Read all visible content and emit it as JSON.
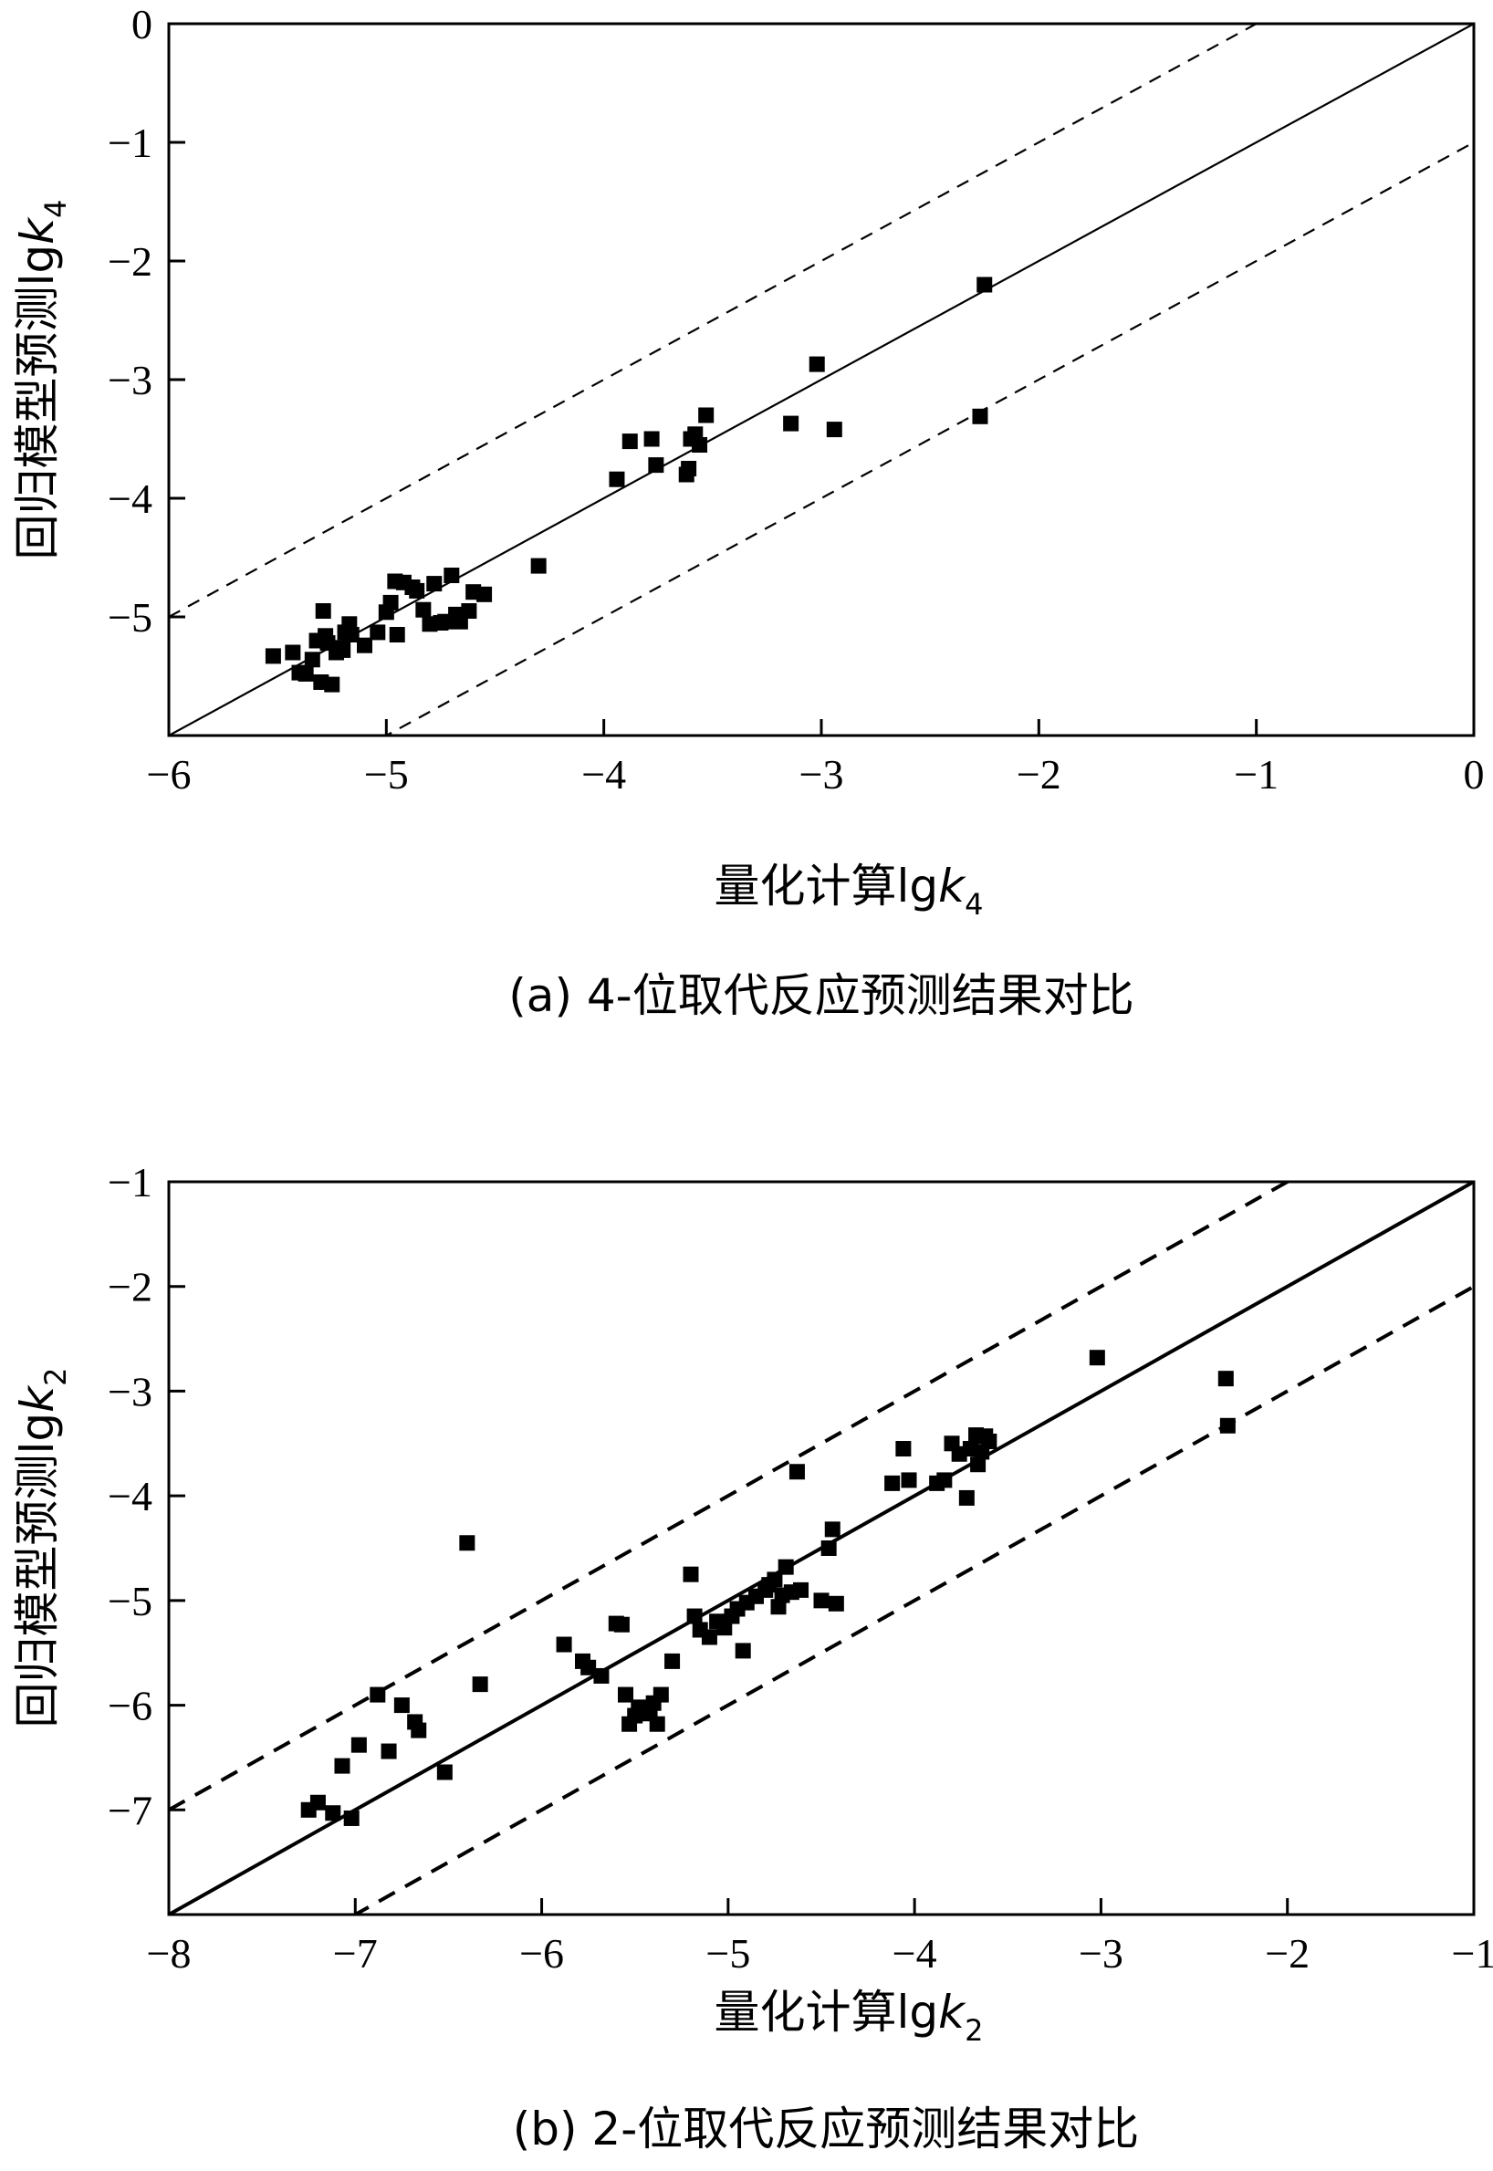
{
  "chart_data": [
    {
      "type": "scatter",
      "title": "",
      "caption": "(a) 4-位取代反应预测结果对比",
      "xlabel": {
        "text": "量化计算lg",
        "var": "k",
        "sub": "4"
      },
      "ylabel": {
        "text": "回归模型预测lg",
        "var": "k",
        "sub": "4"
      },
      "xlim": [
        -6,
        0
      ],
      "ylim": [
        -6,
        0
      ],
      "xticks": [
        "−6",
        "−5",
        "−4",
        "−3",
        "−2",
        "−1",
        "0"
      ],
      "yticks": [
        "−5",
        "−4",
        "−3",
        "−2",
        "−1",
        "0"
      ],
      "xtick_values": [
        -6,
        -5,
        -4,
        -3,
        -2,
        -1,
        0
      ],
      "ytick_values": [
        -5,
        -4,
        -3,
        -2,
        -1,
        0
      ],
      "grid": false,
      "reference_lines": [
        {
          "style": "solid",
          "slope": 1,
          "intercept": 0
        },
        {
          "style": "dashed",
          "slope": 1,
          "intercept": 1
        },
        {
          "style": "dashed",
          "slope": 1,
          "intercept": -1
        }
      ],
      "points": [
        [
          -5.52,
          -5.33
        ],
        [
          -5.43,
          -5.3
        ],
        [
          -5.4,
          -5.47
        ],
        [
          -5.37,
          -5.48
        ],
        [
          -5.34,
          -5.36
        ],
        [
          -5.32,
          -5.2
        ],
        [
          -5.3,
          -5.55
        ],
        [
          -5.29,
          -4.95
        ],
        [
          -5.28,
          -5.16
        ],
        [
          -5.27,
          -5.22
        ],
        [
          -5.25,
          -5.57
        ],
        [
          -5.23,
          -5.3
        ],
        [
          -5.22,
          -5.26
        ],
        [
          -5.2,
          -5.28
        ],
        [
          -5.19,
          -5.13
        ],
        [
          -5.17,
          -5.06
        ],
        [
          -5.16,
          -5.15
        ],
        [
          -5.1,
          -5.24
        ],
        [
          -5.04,
          -5.13
        ],
        [
          -5.0,
          -4.96
        ],
        [
          -4.98,
          -4.88
        ],
        [
          -4.96,
          -4.7
        ],
        [
          -4.95,
          -5.15
        ],
        [
          -4.92,
          -4.71
        ],
        [
          -4.88,
          -4.75
        ],
        [
          -4.86,
          -4.78
        ],
        [
          -4.83,
          -4.94
        ],
        [
          -4.8,
          -5.06
        ],
        [
          -4.78,
          -4.72
        ],
        [
          -4.75,
          -5.05
        ],
        [
          -4.73,
          -5.04
        ],
        [
          -4.7,
          -4.65
        ],
        [
          -4.68,
          -4.98
        ],
        [
          -4.66,
          -5.04
        ],
        [
          -4.62,
          -4.95
        ],
        [
          -4.6,
          -4.79
        ],
        [
          -4.55,
          -4.81
        ],
        [
          -4.3,
          -4.57
        ],
        [
          -3.94,
          -3.84
        ],
        [
          -3.88,
          -3.52
        ],
        [
          -3.78,
          -3.5
        ],
        [
          -3.76,
          -3.72
        ],
        [
          -3.62,
          -3.8
        ],
        [
          -3.61,
          -3.75
        ],
        [
          -3.6,
          -3.5
        ],
        [
          -3.58,
          -3.46
        ],
        [
          -3.56,
          -3.55
        ],
        [
          -3.53,
          -3.3
        ],
        [
          -3.14,
          -3.37
        ],
        [
          -3.02,
          -2.87
        ],
        [
          -2.94,
          -3.42
        ],
        [
          -2.27,
          -3.31
        ],
        [
          -2.25,
          -2.2
        ]
      ]
    },
    {
      "type": "scatter",
      "title": "",
      "caption": "(b) 2-位取代反应预测结果对比",
      "xlabel": {
        "text": "量化计算lg",
        "var": "k",
        "sub": "2"
      },
      "ylabel": {
        "text": "回归模型预测lg",
        "var": "k",
        "sub": "2"
      },
      "xlim": [
        -8,
        -1
      ],
      "ylim": [
        -8,
        -1
      ],
      "xticks": [
        "−8",
        "−7",
        "−6",
        "−5",
        "−4",
        "−3",
        "−2",
        "−1"
      ],
      "yticks": [
        "−7",
        "−6",
        "−5",
        "−4",
        "−3",
        "−2",
        "−1"
      ],
      "xtick_values": [
        -8,
        -7,
        -6,
        -5,
        -4,
        -3,
        -2,
        -1
      ],
      "ytick_values": [
        -7,
        -6,
        -5,
        -4,
        -3,
        -2,
        -1
      ],
      "grid": false,
      "reference_lines": [
        {
          "style": "solid",
          "slope": 1,
          "intercept": 0
        },
        {
          "style": "dashed",
          "slope": 1,
          "intercept": 1
        },
        {
          "style": "dashed",
          "slope": 1,
          "intercept": -1
        }
      ],
      "points": [
        [
          -7.25,
          -7.0
        ],
        [
          -7.2,
          -6.93
        ],
        [
          -7.12,
          -7.03
        ],
        [
          -7.07,
          -6.58
        ],
        [
          -7.02,
          -7.08
        ],
        [
          -6.98,
          -6.38
        ],
        [
          -6.88,
          -5.9
        ],
        [
          -6.82,
          -6.44
        ],
        [
          -6.75,
          -6.0
        ],
        [
          -6.68,
          -6.16
        ],
        [
          -6.66,
          -6.24
        ],
        [
          -6.52,
          -6.64
        ],
        [
          -6.4,
          -4.45
        ],
        [
          -6.33,
          -5.8
        ],
        [
          -5.88,
          -5.42
        ],
        [
          -5.78,
          -5.58
        ],
        [
          -5.75,
          -5.64
        ],
        [
          -5.68,
          -5.72
        ],
        [
          -5.6,
          -5.22
        ],
        [
          -5.57,
          -5.23
        ],
        [
          -5.55,
          -5.9
        ],
        [
          -5.53,
          -6.18
        ],
        [
          -5.5,
          -6.1
        ],
        [
          -5.48,
          -6.02
        ],
        [
          -5.42,
          -6.08
        ],
        [
          -5.4,
          -5.98
        ],
        [
          -5.38,
          -6.18
        ],
        [
          -5.36,
          -5.9
        ],
        [
          -5.3,
          -5.58
        ],
        [
          -5.2,
          -4.75
        ],
        [
          -5.18,
          -5.15
        ],
        [
          -5.15,
          -5.28
        ],
        [
          -5.1,
          -5.35
        ],
        [
          -5.06,
          -5.2
        ],
        [
          -5.02,
          -5.26
        ],
        [
          -4.98,
          -5.15
        ],
        [
          -4.95,
          -5.08
        ],
        [
          -4.92,
          -5.48
        ],
        [
          -4.9,
          -5.02
        ],
        [
          -4.85,
          -4.96
        ],
        [
          -4.8,
          -4.9
        ],
        [
          -4.78,
          -4.85
        ],
        [
          -4.75,
          -4.8
        ],
        [
          -4.73,
          -5.06
        ],
        [
          -4.71,
          -4.95
        ],
        [
          -4.69,
          -4.68
        ],
        [
          -4.66,
          -4.92
        ],
        [
          -4.63,
          -3.77
        ],
        [
          -4.61,
          -4.9
        ],
        [
          -4.5,
          -5.0
        ],
        [
          -4.46,
          -4.5
        ],
        [
          -4.44,
          -4.32
        ],
        [
          -4.42,
          -5.03
        ],
        [
          -4.12,
          -3.88
        ],
        [
          -4.06,
          -3.55
        ],
        [
          -4.03,
          -3.85
        ],
        [
          -3.88,
          -3.88
        ],
        [
          -3.84,
          -3.85
        ],
        [
          -3.8,
          -3.5
        ],
        [
          -3.76,
          -3.6
        ],
        [
          -3.72,
          -4.02
        ],
        [
          -3.7,
          -3.55
        ],
        [
          -3.67,
          -3.42
        ],
        [
          -3.66,
          -3.7
        ],
        [
          -3.64,
          -3.58
        ],
        [
          -3.62,
          -3.43
        ],
        [
          -3.6,
          -3.48
        ],
        [
          -3.02,
          -2.68
        ],
        [
          -2.33,
          -2.88
        ],
        [
          -2.32,
          -3.33
        ]
      ]
    }
  ]
}
